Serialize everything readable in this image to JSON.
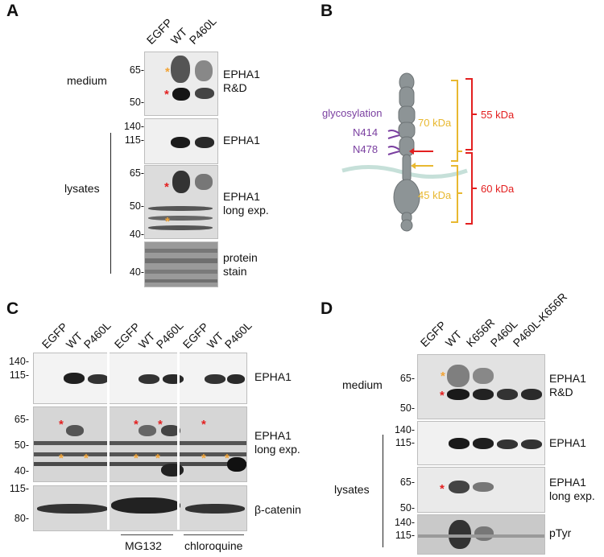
{
  "panel_a": {
    "letter": "A",
    "lanes": [
      "EGFP",
      "WT",
      "P460L"
    ],
    "medium_label": "medium",
    "lysates_label": "lysates",
    "blots": [
      {
        "label_lines": [
          "EPHA1",
          "R&D"
        ],
        "mw": [
          "65-",
          "50-"
        ]
      },
      {
        "label_lines": [
          "EPHA1"
        ],
        "mw": [
          "140-",
          "115-"
        ]
      },
      {
        "label_lines": [
          "EPHA1",
          "long exp."
        ],
        "mw": [
          "65-",
          "50-",
          "40-"
        ]
      },
      {
        "label_lines": [
          "protein",
          "stain"
        ],
        "mw": [
          "40-"
        ]
      }
    ]
  },
  "panel_b": {
    "letter": "B",
    "glycosylation": "glycosylation",
    "site1": "N414",
    "site2": "N478",
    "kda70": "70 kDa",
    "kda45": "45 kDa",
    "kda55": "55 kDa",
    "kda60": "60 kDa"
  },
  "panel_c": {
    "letter": "C",
    "lanes": [
      "EGFP",
      "WT",
      "P460L",
      "EGFP",
      "WT",
      "P460L",
      "EGFP",
      "WT",
      "P460L"
    ],
    "blots": [
      {
        "label_lines": [
          "EPHA1"
        ],
        "mw": [
          "140-",
          "115-"
        ]
      },
      {
        "label_lines": [
          "EPHA1",
          "long exp."
        ],
        "mw": [
          "65-",
          "50-",
          "40-"
        ]
      },
      {
        "label_lines": [
          "β-catenin"
        ],
        "mw": [
          "115-",
          "80-"
        ]
      }
    ],
    "treatment1": "MG132",
    "treatment2": "chloroquine"
  },
  "panel_d": {
    "letter": "D",
    "lanes": [
      "EGFP",
      "WT",
      "K656R",
      "P460L",
      "P460L-K656R"
    ],
    "medium_label": "medium",
    "lysates_label": "lysates",
    "blots": [
      {
        "label_lines": [
          "EPHA1",
          "R&D"
        ],
        "mw": [
          "65-",
          "50-"
        ]
      },
      {
        "label_lines": [
          "EPHA1"
        ],
        "mw": [
          "140-",
          "115-"
        ]
      },
      {
        "label_lines": [
          "EPHA1",
          "long exp."
        ],
        "mw": [
          "65-",
          "50-"
        ]
      },
      {
        "label_lines": [
          "pTyr"
        ],
        "mw": [
          "140-",
          "115-"
        ]
      }
    ]
  },
  "colors": {
    "red_star": "#e32020",
    "orange_star": "#f2a436",
    "glyco": "#7a3fa0",
    "yellow": "#e8b830",
    "red": "#e32020"
  }
}
